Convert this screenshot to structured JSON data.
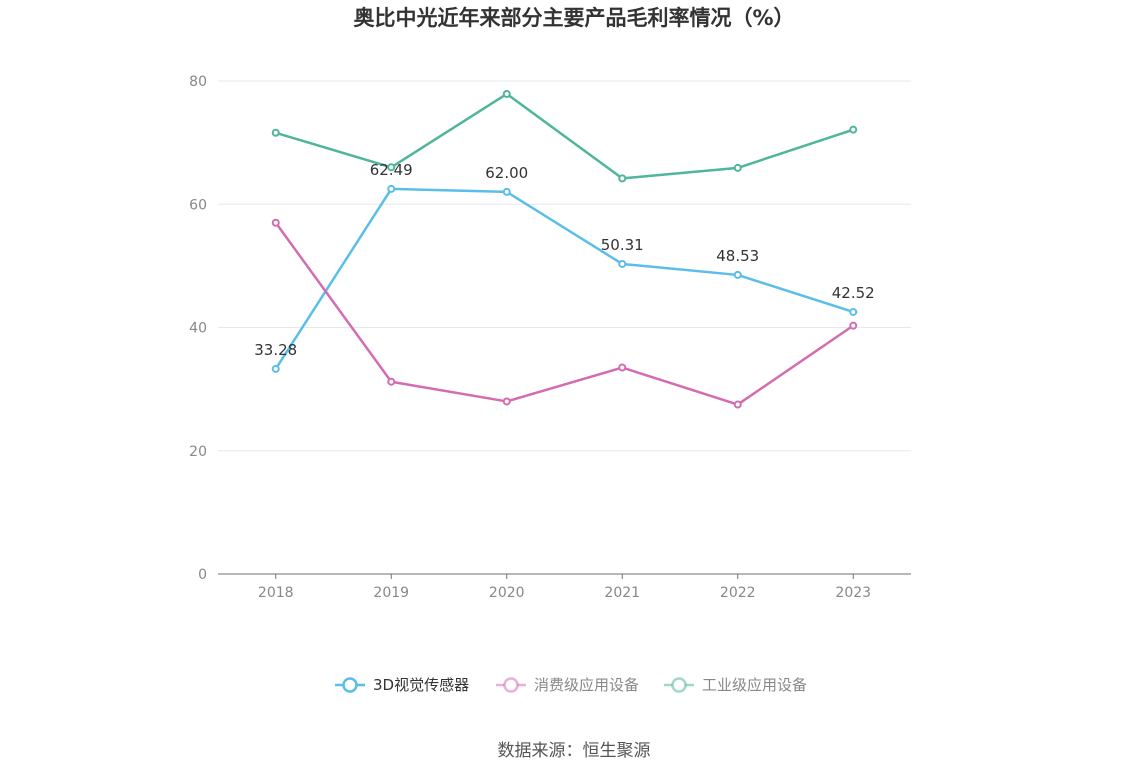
{
  "chart_data": {
    "type": "line",
    "title": "奥比中光近年来部分主要产品毛利率情况（%）",
    "categories": [
      "2018",
      "2019",
      "2020",
      "2021",
      "2022",
      "2023"
    ],
    "ylim": [
      0,
      80
    ],
    "yticks": [
      0,
      20,
      40,
      60,
      80
    ],
    "grid": true,
    "legend_position": "bottom",
    "series": [
      {
        "name": "3D视觉传感器",
        "color": "#5bbdea",
        "values": [
          33.28,
          62.49,
          62.0,
          50.31,
          48.53,
          42.52
        ],
        "labels": [
          "33.28",
          "62.49",
          "62.00",
          "50.31",
          "48.53",
          "42.52"
        ]
      },
      {
        "name": "消费级应用设备",
        "color": "#d36cb0",
        "values": [
          57.0,
          31.2,
          28.0,
          33.5,
          27.5,
          40.3
        ]
      },
      {
        "name": "工业级应用设备",
        "color": "#4fb59b",
        "values": [
          71.6,
          66.0,
          77.9,
          64.2,
          65.9,
          72.1
        ]
      }
    ]
  },
  "source": "数据来源：恒生聚源"
}
